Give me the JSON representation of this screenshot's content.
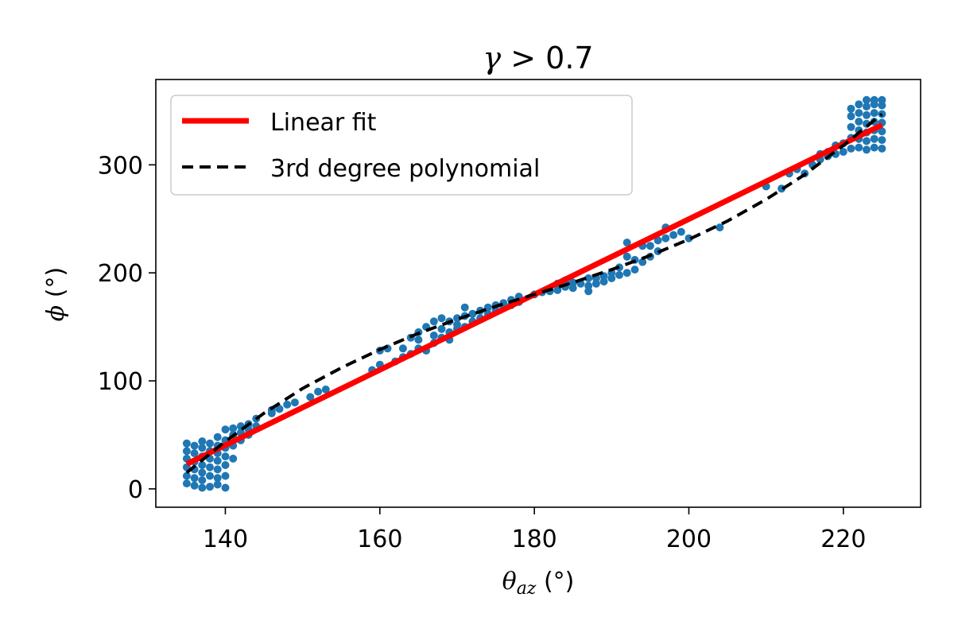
{
  "chart_data": {
    "type": "scatter",
    "title": {
      "symbol": "γ",
      "rest": " > 0.7"
    },
    "xlabel": {
      "symbol": "θ",
      "subscript": "az",
      "unit": " (°)"
    },
    "ylabel": {
      "symbol": "ϕ",
      "unit": " (°)"
    },
    "xlim": [
      131,
      230
    ],
    "ylim": [
      -17,
      379
    ],
    "xticks": [
      140,
      160,
      180,
      200,
      220
    ],
    "yticks": [
      0,
      100,
      200,
      300
    ],
    "grid": false,
    "legend_position": "upper-left",
    "series": [
      {
        "kind": "points",
        "color": "#1f77b4",
        "points": [
          [
            135,
            5
          ],
          [
            135,
            12
          ],
          [
            135,
            20
          ],
          [
            135,
            28
          ],
          [
            135,
            35
          ],
          [
            135,
            42
          ],
          [
            136,
            3
          ],
          [
            136,
            10
          ],
          [
            136,
            18
          ],
          [
            136,
            25
          ],
          [
            136,
            33
          ],
          [
            136,
            40
          ],
          [
            137,
            1
          ],
          [
            137,
            8
          ],
          [
            137,
            15
          ],
          [
            137,
            22
          ],
          [
            137,
            30
          ],
          [
            137,
            38
          ],
          [
            137,
            44
          ],
          [
            138,
            2
          ],
          [
            138,
            12
          ],
          [
            138,
            20
          ],
          [
            138,
            28
          ],
          [
            138,
            35
          ],
          [
            138,
            42
          ],
          [
            139,
            4
          ],
          [
            139,
            10
          ],
          [
            139,
            18
          ],
          [
            139,
            26
          ],
          [
            139,
            33
          ],
          [
            139,
            40
          ],
          [
            139,
            48
          ],
          [
            140,
            1
          ],
          [
            140,
            12
          ],
          [
            140,
            22
          ],
          [
            140,
            30
          ],
          [
            140,
            38
          ],
          [
            140,
            45
          ],
          [
            140,
            55
          ],
          [
            141,
            28
          ],
          [
            141,
            40
          ],
          [
            141,
            50
          ],
          [
            141,
            56
          ],
          [
            142,
            45
          ],
          [
            142,
            52
          ],
          [
            142,
            58
          ],
          [
            143,
            50
          ],
          [
            143,
            55
          ],
          [
            143,
            60
          ],
          [
            144,
            58
          ],
          [
            144,
            65
          ],
          [
            146,
            70
          ],
          [
            146,
            73
          ],
          [
            147,
            74
          ],
          [
            148,
            78
          ],
          [
            149,
            80
          ],
          [
            151,
            85
          ],
          [
            152,
            90
          ],
          [
            153,
            92
          ],
          [
            159,
            110
          ],
          [
            160,
            115
          ],
          [
            160,
            128
          ],
          [
            161,
            130
          ],
          [
            162,
            118
          ],
          [
            163,
            122
          ],
          [
            163,
            130
          ],
          [
            164,
            125
          ],
          [
            164,
            140
          ],
          [
            165,
            130
          ],
          [
            165,
            138
          ],
          [
            165,
            145
          ],
          [
            166,
            128
          ],
          [
            166,
            150
          ],
          [
            167,
            135
          ],
          [
            167,
            142
          ],
          [
            167,
            155
          ],
          [
            168,
            140
          ],
          [
            168,
            148
          ],
          [
            168,
            158
          ],
          [
            169,
            138
          ],
          [
            169,
            145
          ],
          [
            169,
            155
          ],
          [
            170,
            148
          ],
          [
            170,
            152
          ],
          [
            170,
            158
          ],
          [
            171,
            150
          ],
          [
            171,
            160
          ],
          [
            171,
            168
          ],
          [
            172,
            155
          ],
          [
            172,
            162
          ],
          [
            173,
            158
          ],
          [
            173,
            165
          ],
          [
            174,
            162
          ],
          [
            174,
            168
          ],
          [
            175,
            165
          ],
          [
            175,
            170
          ],
          [
            176,
            168
          ],
          [
            176,
            172
          ],
          [
            177,
            170
          ],
          [
            177,
            175
          ],
          [
            178,
            173
          ],
          [
            178,
            178
          ],
          [
            180,
            180
          ],
          [
            181,
            182
          ],
          [
            182,
            183
          ],
          [
            183,
            184
          ],
          [
            183,
            190
          ],
          [
            184,
            187
          ],
          [
            184,
            193
          ],
          [
            185,
            186
          ],
          [
            185,
            191
          ],
          [
            186,
            190
          ],
          [
            187,
            183
          ],
          [
            187,
            188
          ],
          [
            187,
            195
          ],
          [
            188,
            190
          ],
          [
            188,
            195
          ],
          [
            189,
            192
          ],
          [
            189,
            197
          ],
          [
            190,
            195
          ],
          [
            190,
            200
          ],
          [
            191,
            198
          ],
          [
            191,
            205
          ],
          [
            192,
            200
          ],
          [
            192,
            215
          ],
          [
            192,
            228
          ],
          [
            193,
            203
          ],
          [
            193,
            212
          ],
          [
            194,
            210
          ],
          [
            194,
            225
          ],
          [
            195,
            215
          ],
          [
            195,
            225
          ],
          [
            196,
            220
          ],
          [
            196,
            230
          ],
          [
            197,
            232
          ],
          [
            197,
            242
          ],
          [
            198,
            235
          ],
          [
            199,
            238
          ],
          [
            200,
            232
          ],
          [
            204,
            242
          ],
          [
            210,
            280
          ],
          [
            212,
            278
          ],
          [
            213,
            292
          ],
          [
            214,
            296
          ],
          [
            215,
            292
          ],
          [
            216,
            300
          ],
          [
            217,
            305
          ],
          [
            217,
            310
          ],
          [
            218,
            308
          ],
          [
            218,
            312
          ],
          [
            219,
            310
          ],
          [
            219,
            318
          ],
          [
            220,
            312
          ],
          [
            220,
            320
          ],
          [
            221,
            315
          ],
          [
            221,
            325
          ],
          [
            221,
            335
          ],
          [
            221,
            345
          ],
          [
            221,
            352
          ],
          [
            222,
            316
          ],
          [
            222,
            324
          ],
          [
            222,
            332
          ],
          [
            222,
            340
          ],
          [
            222,
            348
          ],
          [
            222,
            356
          ],
          [
            223,
            314
          ],
          [
            223,
            322
          ],
          [
            223,
            330
          ],
          [
            223,
            338
          ],
          [
            223,
            346
          ],
          [
            223,
            354
          ],
          [
            223,
            360
          ],
          [
            224,
            316
          ],
          [
            224,
            324
          ],
          [
            224,
            332
          ],
          [
            224,
            340
          ],
          [
            224,
            348
          ],
          [
            224,
            356
          ],
          [
            224,
            360
          ],
          [
            225,
            315
          ],
          [
            225,
            323
          ],
          [
            225,
            331
          ],
          [
            225,
            339
          ],
          [
            225,
            347
          ],
          [
            225,
            355
          ],
          [
            225,
            360
          ]
        ]
      },
      {
        "kind": "line",
        "name": "Linear fit",
        "color": "#ff0000",
        "style": "solid",
        "x": [
          135,
          225
        ],
        "y": [
          23,
          337
        ]
      },
      {
        "kind": "line",
        "name": "3rd degree polynomial",
        "color": "#000000",
        "style": "dashed",
        "x": [
          135,
          140,
          145,
          150,
          155,
          160,
          165,
          170,
          175,
          180,
          185,
          190,
          195,
          200,
          205,
          210,
          215,
          220,
          225
        ],
        "y": [
          15,
          44,
          70,
          93,
          112,
          129,
          144,
          157,
          169,
          180,
          191,
          203,
          216,
          231,
          248,
          268,
          291,
          318,
          347
        ]
      }
    ]
  }
}
